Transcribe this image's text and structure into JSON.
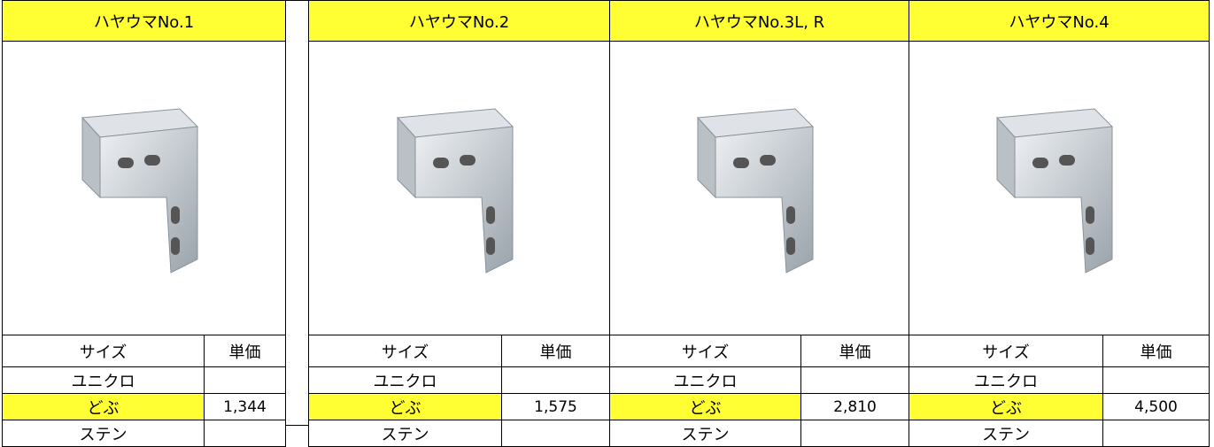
{
  "products": [
    {
      "title": "ハヤウマNo.1",
      "size_header": "サイズ",
      "price_header": "単価",
      "rows": [
        {
          "finish": "ユニクロ"
        },
        {
          "finish": "どぶ",
          "price": "1,344"
        },
        {
          "finish": "ステン"
        }
      ]
    },
    {
      "title": "ハヤウマNo.2",
      "size_header": "サイズ",
      "price_header": "単価",
      "rows": [
        {
          "finish": "ユニクロ"
        },
        {
          "finish": "どぶ",
          "price": "1,575"
        },
        {
          "finish": "ステン"
        }
      ]
    },
    {
      "title": "ハヤウマNo.3L, R",
      "size_header": "サイズ",
      "price_header": "単価",
      "rows": [
        {
          "finish": "ユニクロ"
        },
        {
          "finish": "どぶ",
          "price": "2,810"
        },
        {
          "finish": "ステン"
        }
      ]
    },
    {
      "title": "ハヤウマNo.4",
      "size_header": "サイズ",
      "price_header": "単価",
      "rows": [
        {
          "finish": "ユニクロ"
        },
        {
          "finish": "どぶ",
          "price": "4,500"
        },
        {
          "finish": "ステン"
        }
      ]
    }
  ]
}
